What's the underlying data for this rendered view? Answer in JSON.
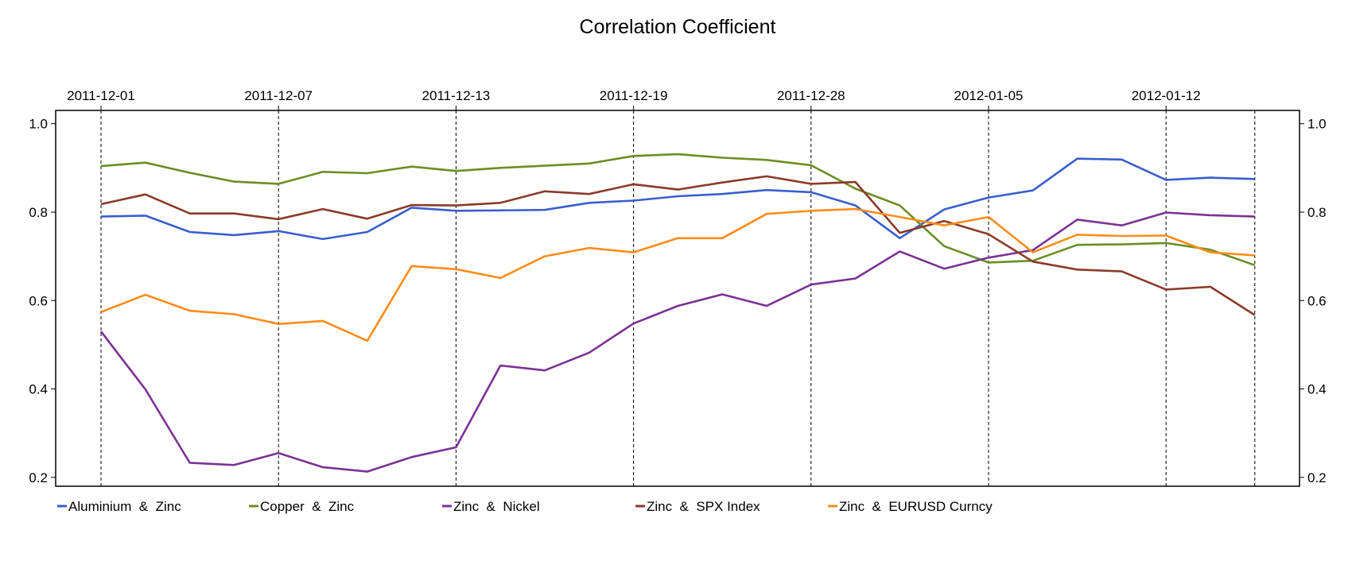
{
  "chart_data": {
    "type": "line",
    "title": "Correlation Coefficient",
    "top_tick_labels": [
      "2011-12-01",
      "2011-12-07",
      "2011-12-13",
      "2011-12-19",
      "2011-12-28",
      "2012-01-05",
      "2012-01-12"
    ],
    "ylim": [
      0.18,
      1.03
    ],
    "yticks": [
      "0.2",
      "0.4",
      "0.6",
      "0.8",
      "1.0"
    ],
    "legend_position": "bottom",
    "grid": "dashed vertical lines at date ticks",
    "series": [
      {
        "name": "Aluminium  &  Zinc",
        "color": "#3a5fcd",
        "values": [
          0.79,
          0.792,
          0.755,
          0.748,
          0.757,
          0.739,
          0.755,
          0.81,
          0.803,
          0.804,
          0.805,
          0.821,
          0.826,
          0.836,
          0.841,
          0.85,
          0.845,
          0.815,
          0.741,
          0.806,
          0.833,
          0.849,
          0.921,
          0.919,
          0.873,
          0.878,
          0.875
        ]
      },
      {
        "name": "Copper  &  Zinc",
        "color": "#6b8e23",
        "values": [
          0.904,
          0.912,
          0.889,
          0.869,
          0.864,
          0.891,
          0.888,
          0.903,
          0.893,
          0.9,
          0.905,
          0.91,
          0.927,
          0.931,
          0.923,
          0.918,
          0.906,
          0.853,
          0.815,
          0.723,
          0.686,
          0.69,
          0.726,
          0.727,
          0.73,
          0.715,
          0.68
        ]
      },
      {
        "name": "Zinc  &  Nickel",
        "color": "#7b3294",
        "values": [
          0.53,
          0.399,
          0.233,
          0.228,
          0.255,
          0.223,
          0.213,
          0.246,
          0.268,
          0.453,
          0.442,
          0.482,
          0.548,
          0.588,
          0.614,
          0.588,
          0.636,
          0.65,
          0.711,
          0.672,
          0.697,
          0.714,
          0.783,
          0.77,
          0.799,
          0.793,
          0.79
        ]
      },
      {
        "name": "Zinc  &  SPX Index",
        "color": "#8b3a2a",
        "values": [
          0.818,
          0.84,
          0.797,
          0.797,
          0.784,
          0.807,
          0.785,
          0.816,
          0.815,
          0.821,
          0.847,
          0.841,
          0.863,
          0.851,
          0.867,
          0.881,
          0.864,
          0.868,
          0.753,
          0.78,
          0.75,
          0.688,
          0.67,
          0.666,
          0.625,
          0.631,
          0.567
        ]
      },
      {
        "name": "Zinc  &  EURUSD Curncy",
        "color": "#ff8c1a",
        "values": [
          0.574,
          0.613,
          0.577,
          0.569,
          0.547,
          0.554,
          0.509,
          0.678,
          0.671,
          0.651,
          0.7,
          0.719,
          0.709,
          0.741,
          0.741,
          0.796,
          0.803,
          0.807,
          0.789,
          0.77,
          0.789,
          0.709,
          0.749,
          0.746,
          0.747,
          0.709,
          0.702
        ]
      }
    ]
  }
}
